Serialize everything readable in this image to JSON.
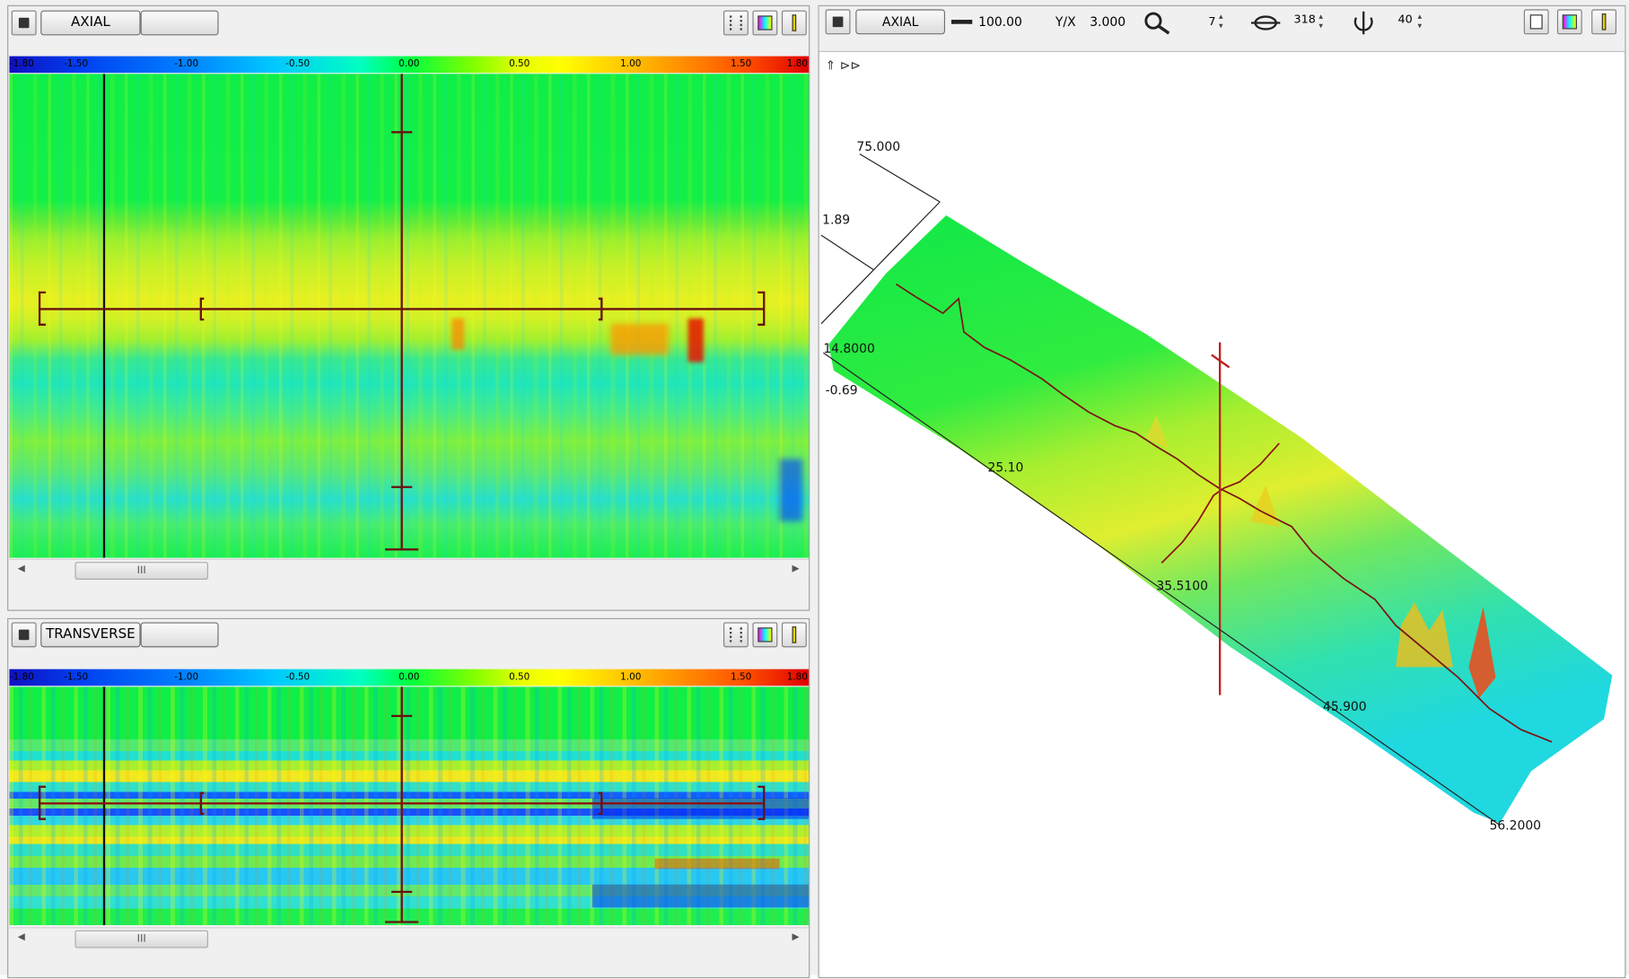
{
  "panels": {
    "axial": {
      "mode_button": "AXIAL",
      "colorbar_labels": [
        "-1.80",
        "-1.50",
        "-1.00",
        "-0.50",
        "0.00",
        "0.50",
        "1.00",
        "1.50",
        "1.80"
      ],
      "scroll_thumb": "III"
    },
    "transverse": {
      "mode_button": "TRANSVERSE",
      "colorbar_labels": [
        "-1.80",
        "-1.50",
        "-1.00",
        "-0.50",
        "0.00",
        "0.50",
        "1.00",
        "1.50",
        "1.80"
      ],
      "scroll_thumb": "III"
    },
    "view3d": {
      "mode_button": "AXIAL",
      "span_value": "100.00",
      "ratio_label": "Y/X",
      "ratio_value": "3.000",
      "zoom_value": "7",
      "rotation_value": "318",
      "tilt_value": "40",
      "axis_labels": [
        "75.000",
        "1.89",
        "14.8000",
        "-0.69",
        "25.10",
        "35.5100",
        "45.900",
        "56.2000"
      ]
    }
  }
}
